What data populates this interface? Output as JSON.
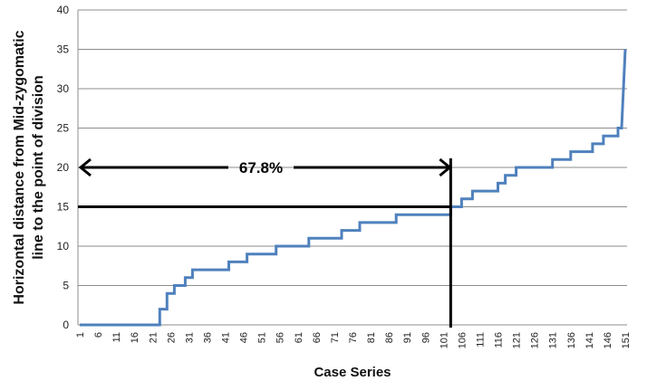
{
  "chart_data": {
    "type": "line",
    "xlabel": "Case Series",
    "ylabel_lines": [
      "Horizontal distance from Mid-zygomatic",
      "line to the point of division"
    ],
    "ylim": [
      0,
      40
    ],
    "yticks": [
      0,
      5,
      10,
      15,
      20,
      25,
      30,
      35,
      40
    ],
    "x_range": [
      1,
      151
    ],
    "xticks": [
      1,
      6,
      11,
      16,
      21,
      26,
      31,
      36,
      41,
      46,
      51,
      56,
      61,
      66,
      71,
      76,
      81,
      86,
      91,
      96,
      101,
      106,
      111,
      116,
      121,
      126,
      131,
      136,
      141,
      146,
      151
    ],
    "grid": true,
    "legend": "none",
    "series": [
      {
        "color": "#4f81bd",
        "x": [
          1,
          23,
          23,
          25,
          25,
          27,
          27,
          28,
          28,
          30,
          30,
          32,
          32,
          34,
          34,
          42,
          42,
          47,
          47,
          55,
          55,
          64,
          64,
          73,
          73,
          78,
          78,
          82,
          82,
          88,
          88,
          101,
          101,
          103,
          103,
          106,
          106,
          109,
          109,
          113,
          113,
          116,
          116,
          118,
          118,
          121,
          121,
          124,
          124,
          131,
          131,
          136,
          136,
          142,
          142,
          145,
          145,
          149,
          149,
          150,
          150,
          151
        ],
        "y": [
          0,
          0,
          2,
          2,
          4,
          4,
          5,
          5,
          5,
          5,
          6,
          6,
          7,
          7,
          7,
          7,
          8,
          8,
          9,
          9,
          10,
          10,
          11,
          11,
          12,
          12,
          13,
          13,
          13,
          13,
          14,
          14,
          14,
          14,
          15,
          15,
          16,
          16,
          17,
          17,
          17,
          17,
          18,
          18,
          19,
          19,
          20,
          20,
          20,
          20,
          21,
          21,
          22,
          22,
          23,
          23,
          24,
          24,
          25,
          25,
          25,
          35
        ]
      }
    ],
    "annotations": {
      "percent_label": "67.8%",
      "arrow_span": [
        1,
        103
      ],
      "arrow_y": 20,
      "threshold_y": 15,
      "threshold_x": 103
    }
  }
}
